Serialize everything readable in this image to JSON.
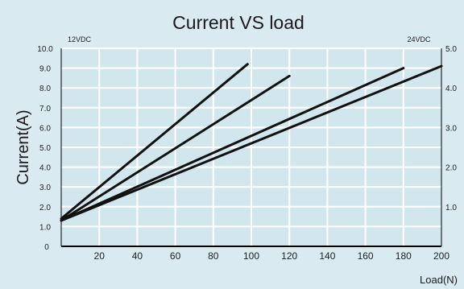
{
  "chart_data": {
    "type": "line",
    "title": "Current VS load",
    "xlabel": "Load(N)",
    "ylabel": "Current(A)",
    "xlim": [
      0,
      200
    ],
    "ylim_left": [
      0,
      10
    ],
    "ylim_right": [
      0,
      5
    ],
    "x_ticks": [
      "20",
      "40",
      "60",
      "80",
      "100",
      "120",
      "140",
      "160",
      "180",
      "200"
    ],
    "y_ticks_left": [
      "1.0",
      "2.0",
      "3.0",
      "4.0",
      "5.0",
      "6.0",
      "7.0",
      "8.0",
      "9.0",
      "10.0"
    ],
    "y_ticks_right": [
      "1.0",
      "2.0",
      "3.0",
      "4.0",
      "5.0"
    ],
    "y_zero_label": "0",
    "left_axis_note": "12VDC",
    "right_axis_note": "24VDC",
    "grid": true,
    "series": [
      {
        "x": [
          0,
          98
        ],
        "y": [
          1.4,
          9.2
        ]
      },
      {
        "x": [
          0,
          120
        ],
        "y": [
          1.3,
          8.6
        ]
      },
      {
        "x": [
          0,
          180
        ],
        "y": [
          1.3,
          9.0
        ]
      },
      {
        "x": [
          0,
          200
        ],
        "y": [
          1.3,
          9.1
        ]
      }
    ]
  }
}
